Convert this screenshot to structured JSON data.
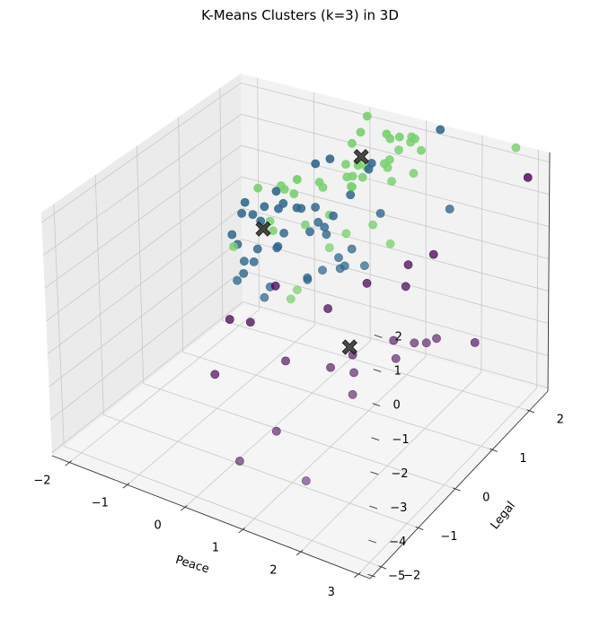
{
  "chart_data": {
    "type": "scatter3d",
    "title": "K-Means Clusters (k=3) in 3D",
    "xlabel": "Peace",
    "ylabel": "Legal",
    "zlabel": "",
    "xlim": [
      -2.3,
      3.2
    ],
    "ylim": [
      -2.3,
      2.5
    ],
    "zlim": [
      -5.1,
      2.3
    ],
    "xticks": [
      "−2",
      "−1",
      "0",
      "1",
      "2",
      "3"
    ],
    "yticks": [
      "−2",
      "−1",
      "0",
      "1",
      "2"
    ],
    "zticks": [
      "−5",
      "−4",
      "−3",
      "−2",
      "−1",
      "0",
      "1",
      "2"
    ],
    "grid": true,
    "cluster_colors": [
      "#440154",
      "#31688e",
      "#7ad171"
    ],
    "centroid_color": "#3a3a3a",
    "centroids": [
      {
        "x": 0.41,
        "y": 1.68,
        "z": 1.75,
        "cluster": 2
      },
      {
        "x": -0.21,
        "y": 0.08,
        "z": 0.8,
        "cluster": 1
      },
      {
        "x": 1.7,
        "y": -0.57,
        "z": -1.06,
        "cluster": 0
      }
    ],
    "points": [
      {
        "x": 0.82,
        "y": 2.07,
        "z": 2.16,
        "c": 2
      },
      {
        "x": 0.64,
        "y": 2.0,
        "z": 2.24,
        "c": 2
      },
      {
        "x": 0.35,
        "y": 1.4,
        "z": 1.37,
        "c": 2
      },
      {
        "x": 0.47,
        "y": 1.37,
        "z": 1.49,
        "c": 2
      },
      {
        "x": 1.24,
        "y": 1.85,
        "z": 2.53,
        "c": 2
      },
      {
        "x": -0.33,
        "y": 0.8,
        "z": 1.25,
        "c": 2
      },
      {
        "x": 1.1,
        "y": 1.97,
        "z": 2.4,
        "c": 2
      },
      {
        "x": 0.42,
        "y": 1.43,
        "z": 1.07,
        "c": 2
      },
      {
        "x": 0.45,
        "y": 0.8,
        "z": 0.86,
        "c": 2
      },
      {
        "x": 0.91,
        "y": 1.68,
        "z": 1.9,
        "c": 2
      },
      {
        "x": 1.0,
        "y": 1.49,
        "z": 1.89,
        "c": 2
      },
      {
        "x": 1.21,
        "y": 1.78,
        "z": 2.48,
        "c": 2
      },
      {
        "x": 0.06,
        "y": 1.12,
        "z": 1.35,
        "c": 2
      },
      {
        "x": 0.73,
        "y": 1.96,
        "z": 2.18,
        "c": 2
      },
      {
        "x": 0.27,
        "y": 1.65,
        "z": 2.13,
        "c": 2
      },
      {
        "x": -0.13,
        "y": 0.83,
        "z": 1.63,
        "c": 2
      },
      {
        "x": 0.58,
        "y": 1.56,
        "z": 1.64,
        "c": 2
      },
      {
        "x": 0.29,
        "y": 1.46,
        "z": 1.68,
        "c": 2
      },
      {
        "x": 1.11,
        "y": 1.62,
        "z": 2.36,
        "c": 2
      },
      {
        "x": 0.91,
        "y": 1.54,
        "z": 1.92,
        "c": 2
      },
      {
        "x": 0.59,
        "y": 1.45,
        "z": 1.43,
        "c": 2
      },
      {
        "x": 1.12,
        "y": 1.42,
        "z": 1.6,
        "c": 2
      },
      {
        "x": 1.29,
        "y": 1.94,
        "z": 2.1,
        "c": 2
      },
      {
        "x": -0.43,
        "y": 0.86,
        "z": 1.25,
        "c": 2
      },
      {
        "x": -0.13,
        "y": 0.83,
        "z": 1.63,
        "c": 2
      },
      {
        "x": 0.43,
        "y": 1.57,
        "z": 1.6,
        "c": 2
      },
      {
        "x": -0.7,
        "y": 0.67,
        "z": 1.22,
        "c": 2
      },
      {
        "x": 0.62,
        "y": 1.11,
        "z": 1.51,
        "c": 2
      },
      {
        "x": 0.14,
        "y": 1.09,
        "z": 1.26,
        "c": 2
      },
      {
        "x": 0.36,
        "y": 1.91,
        "z": 2.76,
        "c": 2
      },
      {
        "x": 0.34,
        "y": 1.77,
        "z": 2.39,
        "c": 2
      },
      {
        "x": -0.33,
        "y": 1.04,
        "z": 0.87,
        "c": 2
      },
      {
        "x": 0.13,
        "y": 0.65,
        "z": 0.54,
        "c": 2
      },
      {
        "x": 2.6,
        "y": 2.5,
        "z": 2.18,
        "c": 2
      },
      {
        "x": -0.6,
        "y": -0.1,
        "z": 0.22,
        "c": 2
      },
      {
        "x": 0.59,
        "y": 1.34,
        "z": 2.01,
        "c": 2
      },
      {
        "x": 0.59,
        "y": -0.25,
        "z": -0.29,
        "c": 2
      },
      {
        "x": 1.35,
        "y": 1.65,
        "z": 1.72,
        "c": 2
      },
      {
        "x": -0.29,
        "y": 0.37,
        "z": 0.71,
        "c": 2
      },
      {
        "x": 0.76,
        "y": 0.77,
        "z": 0.48,
        "c": 2
      },
      {
        "x": 0.73,
        "y": 0.38,
        "z": 0.43,
        "c": 2
      },
      {
        "x": -0.26,
        "y": 0.4,
        "z": 0.4,
        "c": 2
      },
      {
        "x": 0.46,
        "y": -0.22,
        "z": -0.67,
        "c": 2
      },
      {
        "x": -0.48,
        "y": 0.49,
        "z": 0.27,
        "c": 2
      },
      {
        "x": 1.07,
        "y": 1.0,
        "z": 0.67,
        "c": 2
      },
      {
        "x": 1.41,
        "y": 0.95,
        "z": 0.31,
        "c": 2
      },
      {
        "x": 1.44,
        "y": 2.22,
        "z": 2.52,
        "c": 1
      },
      {
        "x": 0.11,
        "y": 1.32,
        "z": 1.9,
        "c": 1
      },
      {
        "x": 0.66,
        "y": 1.58,
        "z": 1.77,
        "c": 1
      },
      {
        "x": 1.17,
        "y": 1.05,
        "z": 1.02,
        "c": 1
      },
      {
        "x": 0.63,
        "y": 1.55,
        "z": 1.6,
        "c": 1
      },
      {
        "x": -0.07,
        "y": 1.21,
        "z": 1.77,
        "c": 1
      },
      {
        "x": 0.56,
        "y": 1.18,
        "z": 1.15,
        "c": 1
      },
      {
        "x": -0.25,
        "y": 0.65,
        "z": 1.0,
        "c": 1
      },
      {
        "x": -0.48,
        "y": 0.81,
        "z": 1.1,
        "c": 1
      },
      {
        "x": -0.09,
        "y": 0.76,
        "z": 0.84,
        "c": 1
      },
      {
        "x": -0.48,
        "y": 0.51,
        "z": 0.92,
        "c": 1
      },
      {
        "x": -0.6,
        "y": 0.39,
        "z": 0.73,
        "c": 1
      },
      {
        "x": -0.74,
        "y": 0.4,
        "z": 1.02,
        "c": 1
      },
      {
        "x": -0.73,
        "y": 0.3,
        "z": 0.78,
        "c": 1
      },
      {
        "x": -0.5,
        "y": 0.44,
        "z": 0.53,
        "c": 1
      },
      {
        "x": 0.02,
        "y": 0.11,
        "z": 0.36,
        "c": 1
      },
      {
        "x": -0.75,
        "y": 0.08,
        "z": 0.33,
        "c": 1
      },
      {
        "x": 0.51,
        "y": 0.81,
        "z": 0.85,
        "c": 1
      },
      {
        "x": 0.38,
        "y": 0.61,
        "z": 0.79,
        "c": 1
      },
      {
        "x": 0.26,
        "y": 0.72,
        "z": 1.08,
        "c": 1
      },
      {
        "x": 0.49,
        "y": 0.61,
        "z": 0.7,
        "c": 1
      },
      {
        "x": 0.25,
        "y": 0.59,
        "z": 0.45,
        "c": 1
      },
      {
        "x": 0.04,
        "y": 0.68,
        "z": 0.97,
        "c": 1
      },
      {
        "x": -0.03,
        "y": 0.34,
        "z": 0.51,
        "c": 1
      },
      {
        "x": -0.32,
        "y": 0.63,
        "z": 0.82,
        "c": 1
      },
      {
        "x": -0.62,
        "y": 0.03,
        "z": 0.15,
        "c": 1
      },
      {
        "x": -0.31,
        "y": 0.08,
        "z": 0.13,
        "c": 1
      },
      {
        "x": -0.4,
        "y": -0.13,
        "z": -0.09,
        "c": 1
      },
      {
        "x": -0.26,
        "y": -0.09,
        "z": -0.07,
        "c": 1
      },
      {
        "x": -0.08,
        "y": 0.23,
        "z": 0.14,
        "c": 1
      },
      {
        "x": 0.59,
        "y": 0.51,
        "z": 0.63,
        "c": 1
      },
      {
        "x": 0.16,
        "y": -0.45,
        "z": -0.56,
        "c": 1
      },
      {
        "x": 1.02,
        "y": 0.34,
        "z": 0.07,
        "c": 1
      },
      {
        "x": 0.55,
        "y": 0.08,
        "z": -0.34,
        "c": 1
      },
      {
        "x": 0.62,
        "y": -0.03,
        "z": -0.13,
        "c": 1
      },
      {
        "x": 0.94,
        "y": 0.3,
        "z": 0.32,
        "c": 1
      },
      {
        "x": 0.96,
        "y": 0.31,
        "z": -0.01,
        "c": 1
      },
      {
        "x": 1.05,
        "y": 0.48,
        "z": 0.46,
        "c": 1
      },
      {
        "x": 1.33,
        "y": 0.39,
        "z": 0.19,
        "c": 1
      },
      {
        "x": 2.0,
        "y": 1.63,
        "z": 0.95,
        "c": 1
      },
      {
        "x": -0.44,
        "y": -0.09,
        "z": -0.53,
        "c": 1
      },
      {
        "x": 0.09,
        "y": -0.2,
        "z": -0.53,
        "c": 1
      },
      {
        "x": -0.36,
        "y": -0.37,
        "z": -0.42,
        "c": 1
      },
      {
        "x": 0.82,
        "y": 0.06,
        "z": 0.12,
        "c": 1
      },
      {
        "x": 2.86,
        "y": 2.43,
        "z": 1.45,
        "c": 0
      },
      {
        "x": 1.8,
        "y": 0.83,
        "z": 0.0,
        "c": 0
      },
      {
        "x": 1.94,
        "y": 0.55,
        "z": -0.29,
        "c": 0
      },
      {
        "x": 2.02,
        "y": 1.17,
        "z": 0.06,
        "c": 0
      },
      {
        "x": 1.41,
        "y": 0.33,
        "z": -0.24,
        "c": 0
      },
      {
        "x": 1.04,
        "y": -0.13,
        "z": -0.73,
        "c": 0
      },
      {
        "x": 0.27,
        "y": -0.33,
        "z": -0.27,
        "c": 0
      },
      {
        "x": -0.21,
        "y": -0.79,
        "z": -1.1,
        "c": 0
      },
      {
        "x": 0.09,
        "y": -0.71,
        "z": -1.09,
        "c": 0
      },
      {
        "x": 1.74,
        "y": -0.55,
        "z": -1.29,
        "c": 0
      },
      {
        "x": -0.05,
        "y": -1.42,
        "z": -2.04,
        "c": 0
      },
      {
        "x": 1.51,
        "y": -0.78,
        "z": -1.56,
        "c": 0
      },
      {
        "x": 0.87,
        "y": -0.98,
        "z": -1.53,
        "c": 0
      },
      {
        "x": 1.91,
        "y": -0.78,
        "z": -1.48,
        "c": 0
      },
      {
        "x": 2.25,
        "y": -0.25,
        "z": -0.89,
        "c": 0
      },
      {
        "x": 2.38,
        "y": -0.39,
        "z": -1.21,
        "c": 0
      },
      {
        "x": 2.0,
        "y": -0.95,
        "z": -1.9,
        "c": 0
      },
      {
        "x": 2.6,
        "y": -0.24,
        "z": -0.78,
        "c": 0
      },
      {
        "x": 2.7,
        "y": -0.07,
        "z": -0.91,
        "c": 0
      },
      {
        "x": 2.78,
        "y": 0.08,
        "z": -0.9,
        "c": 0
      },
      {
        "x": 1.02,
        "y": -1.45,
        "z": -3.06,
        "c": 0
      },
      {
        "x": 3.02,
        "y": 0.76,
        "z": -1.66,
        "c": 0
      },
      {
        "x": 0.77,
        "y": -2.03,
        "z": -3.5,
        "c": 0
      },
      {
        "x": 1.76,
        "y": -1.8,
        "z": -3.7,
        "c": 0
      }
    ]
  }
}
